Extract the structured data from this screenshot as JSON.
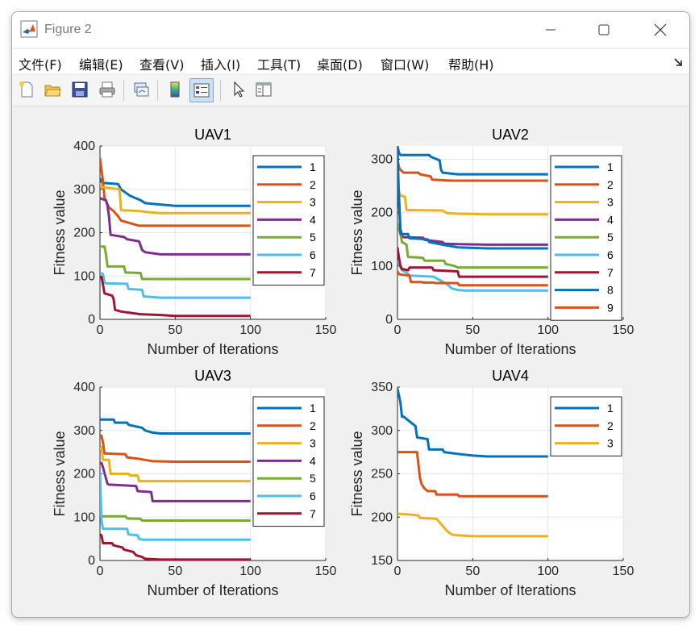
{
  "window": {
    "title": "Figure 2"
  },
  "menu": [
    "文件(F)",
    "编辑(E)",
    "查看(V)",
    "插入(I)",
    "工具(T)",
    "桌面(D)",
    "窗口(W)",
    "帮助(H)"
  ],
  "toolbar": [
    "new-figure-icon",
    "open-folder-icon",
    "save-icon",
    "print-icon",
    "link-plot-icon",
    "colorbar-icon",
    "legend-icon",
    "pointer-icon",
    "property-inspector-icon"
  ],
  "colors": [
    "#0072BD",
    "#D95319",
    "#EDB120",
    "#7E2F8E",
    "#77AC30",
    "#4DBEEE",
    "#A2142F"
  ],
  "chart_data": [
    {
      "type": "line",
      "title": "UAV1",
      "xlabel": "Number of Iterations",
      "ylabel": "Fitness value",
      "xlim": [
        0,
        150
      ],
      "ylim": [
        0,
        400
      ],
      "xticks": [
        0,
        50,
        100,
        150
      ],
      "yticks": [
        0,
        100,
        200,
        300,
        400
      ],
      "grid": true,
      "legend": "top-right",
      "series": [
        {
          "name": "1",
          "x": [
            0,
            1,
            2,
            12,
            14,
            20,
            27,
            30,
            40,
            50,
            100
          ],
          "y": [
            325,
            318,
            315,
            312,
            300,
            285,
            275,
            268,
            265,
            262,
            262
          ]
        },
        {
          "name": "2",
          "x": [
            0,
            1,
            2,
            3,
            6,
            9,
            12,
            14,
            20,
            26,
            100
          ],
          "y": [
            372,
            345,
            320,
            280,
            258,
            250,
            238,
            228,
            222,
            216,
            216
          ]
        },
        {
          "name": "3",
          "x": [
            0,
            1,
            2,
            13,
            14,
            26,
            30,
            40,
            100
          ],
          "y": [
            315,
            305,
            305,
            300,
            252,
            250,
            248,
            245,
            245
          ]
        },
        {
          "name": "4",
          "x": [
            0,
            1,
            4,
            5,
            6,
            7,
            16,
            18,
            26,
            28,
            30,
            40,
            100
          ],
          "y": [
            280,
            278,
            275,
            262,
            238,
            195,
            190,
            185,
            180,
            160,
            155,
            150,
            150
          ]
        },
        {
          "name": "5",
          "x": [
            0,
            3,
            4,
            5,
            16,
            17,
            27,
            28,
            100
          ],
          "y": [
            168,
            168,
            150,
            122,
            122,
            108,
            107,
            93,
            93
          ]
        },
        {
          "name": "6",
          "x": [
            0,
            2,
            3,
            4,
            18,
            19,
            28,
            29,
            40,
            100
          ],
          "y": [
            107,
            105,
            85,
            83,
            82,
            70,
            68,
            53,
            50,
            50
          ]
        },
        {
          "name": "7",
          "x": [
            0,
            1,
            2,
            3,
            8,
            9,
            10,
            14,
            20,
            27,
            40,
            50,
            100
          ],
          "y": [
            95,
            98,
            80,
            60,
            55,
            48,
            22,
            18,
            15,
            12,
            10,
            8,
            8
          ]
        }
      ]
    },
    {
      "type": "line",
      "title": "UAV2",
      "xlabel": "Number of Iterations",
      "ylabel": "Fitness value",
      "xlim": [
        0,
        150
      ],
      "ylim": [
        0,
        325
      ],
      "xticks": [
        0,
        50,
        100,
        150
      ],
      "yticks": [
        0,
        100,
        200,
        300
      ],
      "grid": true,
      "legend": "top-right",
      "series": [
        {
          "name": "1",
          "x": [
            0,
            1,
            2,
            21,
            22,
            28,
            29,
            30,
            40,
            60,
            100
          ],
          "y": [
            325,
            312,
            308,
            308,
            305,
            298,
            280,
            275,
            272,
            272,
            272
          ]
        },
        {
          "name": "2",
          "x": [
            0,
            1,
            2,
            3,
            4,
            14,
            15,
            22,
            23,
            36,
            40,
            100
          ],
          "y": [
            300,
            285,
            280,
            278,
            275,
            275,
            272,
            268,
            262,
            260,
            260,
            260
          ]
        },
        {
          "name": "3",
          "x": [
            0,
            1,
            2,
            5,
            6,
            30,
            33,
            40,
            60,
            100
          ],
          "y": [
            260,
            240,
            232,
            230,
            205,
            204,
            199,
            198,
            197,
            197
          ]
        },
        {
          "name": "4",
          "x": [
            0,
            1,
            2,
            3,
            4,
            17,
            18,
            30,
            31,
            40,
            60,
            100
          ],
          "y": [
            260,
            230,
            170,
            156,
            154,
            153,
            149,
            145,
            142,
            141,
            140,
            140
          ]
        },
        {
          "name": "5",
          "x": [
            0,
            1,
            2,
            3,
            6,
            7,
            14,
            17,
            18,
            31,
            32,
            38,
            40,
            100
          ],
          "y": [
            180,
            170,
            160,
            145,
            140,
            117,
            116,
            115,
            110,
            110,
            104,
            100,
            97,
            97
          ]
        },
        {
          "name": "6",
          "x": [
            0,
            1,
            2,
            3,
            6,
            8,
            24,
            33,
            36,
            40,
            45,
            100
          ],
          "y": [
            110,
            105,
            98,
            92,
            88,
            82,
            80,
            66,
            58,
            55,
            54,
            54
          ]
        },
        {
          "name": "7",
          "x": [
            0,
            1,
            2,
            3,
            4,
            5,
            6,
            7,
            8,
            23,
            24,
            40,
            41,
            100
          ],
          "y": [
            135,
            115,
            100,
            94,
            94,
            93,
            93,
            92,
            97,
            97,
            92,
            90,
            80,
            80
          ]
        },
        {
          "name": "8",
          "x": [
            0,
            1,
            2,
            7,
            8,
            20,
            21,
            30,
            40,
            60,
            100
          ],
          "y": [
            325,
            220,
            160,
            160,
            152,
            150,
            145,
            140,
            135,
            133,
            133
          ]
        },
        {
          "name": "9",
          "x": [
            0,
            1,
            2,
            8,
            9,
            10,
            16,
            17,
            24,
            25,
            40,
            41,
            100
          ],
          "y": [
            90,
            85,
            84,
            82,
            70,
            70,
            70,
            69,
            69,
            68,
            68,
            64,
            64
          ]
        }
      ]
    },
    {
      "type": "line",
      "title": "UAV3",
      "xlabel": "Number of Iterations",
      "ylabel": "Fitness value",
      "xlim": [
        0,
        150
      ],
      "ylim": [
        0,
        400
      ],
      "xticks": [
        0,
        50,
        100,
        150
      ],
      "yticks": [
        0,
        100,
        200,
        300,
        400
      ],
      "grid": true,
      "legend": "top-right",
      "series": [
        {
          "name": "1",
          "x": [
            0,
            9,
            10,
            18,
            19,
            28,
            30,
            35,
            40,
            100
          ],
          "y": [
            325,
            325,
            318,
            318,
            313,
            306,
            300,
            295,
            293,
            293
          ]
        },
        {
          "name": "2",
          "x": [
            0,
            1,
            2,
            3,
            17,
            18,
            25,
            30,
            35,
            50,
            100
          ],
          "y": [
            282,
            288,
            272,
            247,
            245,
            238,
            235,
            232,
            229,
            228,
            228
          ]
        },
        {
          "name": "3",
          "x": [
            0,
            1,
            2,
            6,
            7,
            19,
            20,
            25,
            26,
            100
          ],
          "y": [
            255,
            262,
            232,
            232,
            200,
            200,
            196,
            196,
            183,
            183
          ]
        },
        {
          "name": "4",
          "x": [
            0,
            1,
            2,
            5,
            6,
            24,
            25,
            34,
            35,
            100
          ],
          "y": [
            225,
            225,
            215,
            177,
            175,
            172,
            160,
            158,
            137,
            137
          ]
        },
        {
          "name": "5",
          "x": [
            0,
            1,
            2,
            17,
            18,
            27,
            28,
            100
          ],
          "y": [
            115,
            100,
            102,
            102,
            97,
            96,
            92,
            92
          ]
        },
        {
          "name": "6",
          "x": [
            0,
            1,
            2,
            18,
            19,
            25,
            26,
            28,
            40,
            100
          ],
          "y": [
            205,
            92,
            73,
            73,
            60,
            58,
            50,
            48,
            48,
            48
          ]
        },
        {
          "name": "7",
          "x": [
            0,
            1,
            2,
            8,
            9,
            15,
            16,
            22,
            24,
            28,
            30,
            40,
            100
          ],
          "y": [
            60,
            58,
            40,
            40,
            35,
            30,
            25,
            20,
            12,
            8,
            4,
            2,
            2
          ]
        }
      ]
    },
    {
      "type": "line",
      "title": "UAV4",
      "xlabel": "Number of Iterations",
      "ylabel": "Fitness value",
      "xlim": [
        0,
        150
      ],
      "ylim": [
        150,
        350
      ],
      "xticks": [
        0,
        50,
        100,
        150
      ],
      "yticks": [
        150,
        200,
        250,
        300,
        350
      ],
      "grid": true,
      "legend": "top-right",
      "series": [
        {
          "name": "1",
          "x": [
            0,
            1,
            2,
            3,
            4,
            12,
            13,
            20,
            21,
            30,
            31,
            40,
            50,
            60,
            100
          ],
          "y": [
            348,
            340,
            332,
            316,
            316,
            305,
            292,
            290,
            278,
            278,
            275,
            273,
            271,
            270,
            270
          ]
        },
        {
          "name": "2",
          "x": [
            0,
            13,
            14,
            15,
            16,
            18,
            20,
            25,
            26,
            40,
            41,
            100
          ],
          "y": [
            275,
            275,
            260,
            245,
            238,
            233,
            230,
            230,
            226,
            226,
            224,
            224
          ]
        },
        {
          "name": "3",
          "x": [
            0,
            14,
            15,
            26,
            27,
            30,
            33,
            36,
            40,
            50,
            100
          ],
          "y": [
            204,
            202,
            199,
            198,
            196,
            190,
            184,
            180,
            179,
            178,
            178
          ]
        }
      ]
    }
  ]
}
